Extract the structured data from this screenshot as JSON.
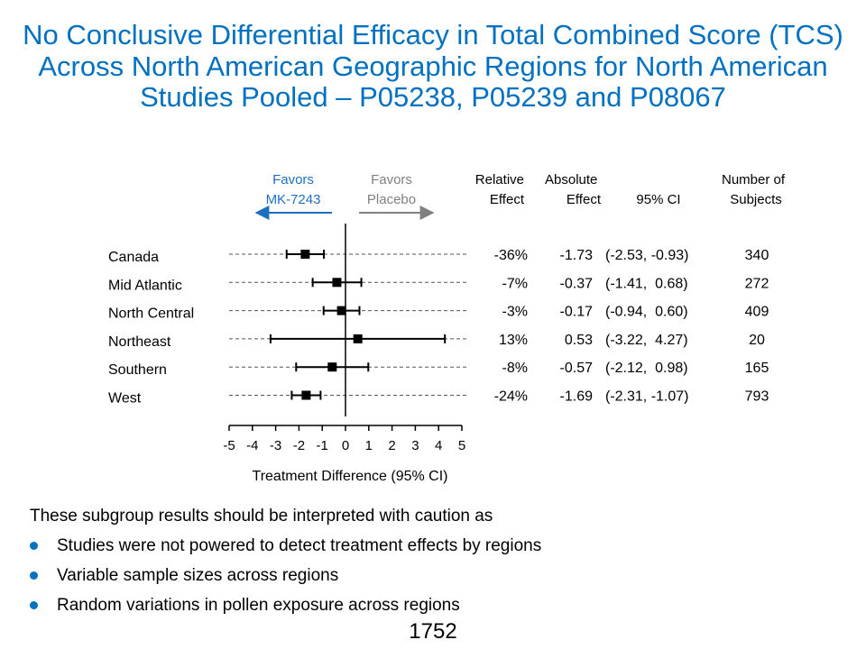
{
  "title": "No Conclusive Differential Efficacy in Total Combined Score (TCS) Across North American Geographic Regions for North American Studies Pooled – P05238, P05239 and P08067",
  "colors": {
    "title": "#0070C0",
    "favors_left": "#1F6FC0",
    "favors_right": "#808080",
    "bullet": "#0070C0"
  },
  "chart_data": {
    "type": "forest",
    "xlabel": "Treatment Difference (95% CI)",
    "xlim": [
      -5,
      5
    ],
    "xticks": [
      -5,
      -4,
      -3,
      -2,
      -1,
      0,
      1,
      2,
      3,
      4,
      5
    ],
    "favors_left": {
      "line1": "Favors",
      "line2": "MK-7243"
    },
    "favors_right": {
      "line1": "Favors",
      "line2": "Placebo"
    },
    "columns": {
      "relative_effect": {
        "line1": "Relative",
        "line2": "Effect"
      },
      "absolute_effect": {
        "line1": "Absolute",
        "line2": "Effect"
      },
      "ci": {
        "line1": "",
        "line2": "95% CI"
      },
      "subjects": {
        "line1": "Number of",
        "line2": "Subjects"
      }
    },
    "rows": [
      {
        "label": "Canada",
        "estimate": -1.73,
        "lower": -2.53,
        "upper": -0.93,
        "relative_effect": "-36%",
        "absolute_effect": "-1.73",
        "ci_text": "(-2.53, -0.93)",
        "subjects": "340"
      },
      {
        "label": "Mid Atlantic",
        "estimate": -0.37,
        "lower": -1.41,
        "upper": 0.68,
        "relative_effect": "-7%",
        "absolute_effect": "-0.37",
        "ci_text": "(-1.41,  0.68)",
        "subjects": "272"
      },
      {
        "label": "North Central",
        "estimate": -0.17,
        "lower": -0.94,
        "upper": 0.6,
        "relative_effect": "-3%",
        "absolute_effect": "-0.17",
        "ci_text": "(-0.94,  0.60)",
        "subjects": "409"
      },
      {
        "label": "Northeast",
        "estimate": 0.53,
        "lower": -3.22,
        "upper": 4.27,
        "relative_effect": "13%",
        "absolute_effect": "0.53",
        "ci_text": "(-3.22,  4.27)",
        "subjects": "20"
      },
      {
        "label": "Southern",
        "estimate": -0.57,
        "lower": -2.12,
        "upper": 0.98,
        "relative_effect": "-8%",
        "absolute_effect": "-0.57",
        "ci_text": "(-2.12,  0.98)",
        "subjects": "165"
      },
      {
        "label": "West",
        "estimate": -1.69,
        "lower": -2.31,
        "upper": -1.07,
        "relative_effect": "-24%",
        "absolute_effect": "-1.69",
        "ci_text": "(-2.31, -1.07)",
        "subjects": "793"
      }
    ]
  },
  "notes": {
    "intro": "These subgroup results should be interpreted with caution as",
    "bullets": [
      "Studies were not powered to detect treatment effects by regions",
      "Variable sample sizes across regions",
      "Random variations in pollen exposure across regions"
    ]
  },
  "page_number": "1752"
}
